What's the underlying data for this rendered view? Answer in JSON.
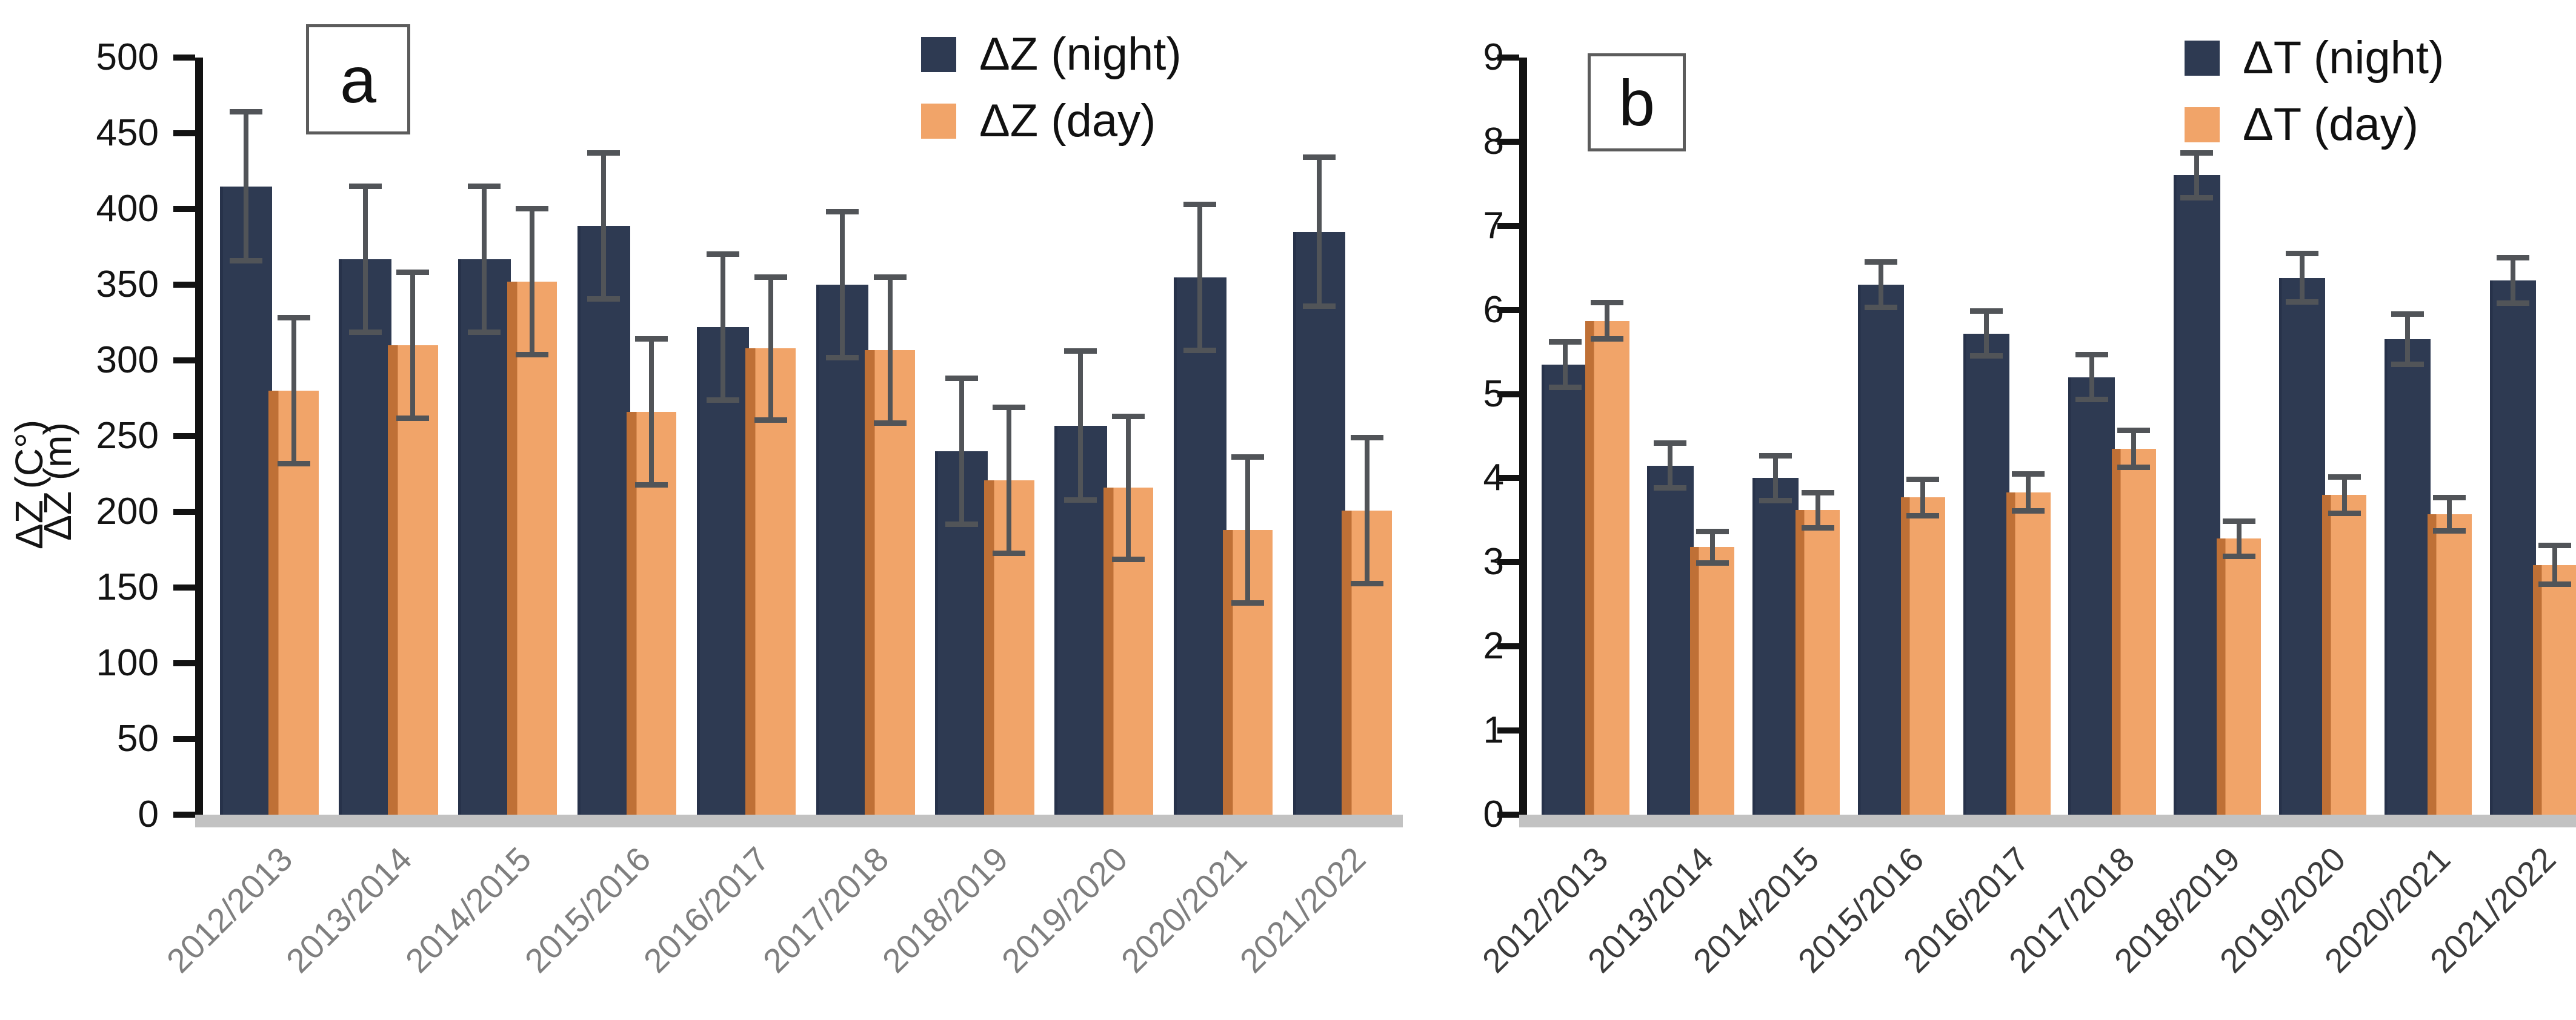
{
  "chart_data": [
    {
      "id": "a",
      "type": "bar",
      "panel_label": "a",
      "ylabel": "ΔZ (m)",
      "ylim": [
        0,
        500
      ],
      "ymax": 500,
      "yticks": [
        0,
        50,
        100,
        150,
        200,
        250,
        300,
        350,
        400,
        450,
        500
      ],
      "grid": "off",
      "legend_position": "top-center",
      "xlabel_color": "#7f7f7f",
      "categories": [
        "2012/2013",
        "2013/2014",
        "2014/2015",
        "2015/2016",
        "2016/2017",
        "2017/2018",
        "2018/2019",
        "2019/2020",
        "2020/2021",
        "2021/2022"
      ],
      "series": [
        {
          "name": "ΔZ (night)",
          "color": "#2e3a52",
          "values": [
            415,
            367,
            367,
            389,
            322,
            350,
            240,
            257,
            355,
            385
          ],
          "errors": [
            51,
            50,
            50,
            50,
            50,
            50,
            50,
            51,
            50,
            51
          ]
        },
        {
          "name": "ΔZ (day)",
          "color": "#f1a469",
          "values": [
            280,
            310,
            352,
            266,
            308,
            307,
            221,
            216,
            188,
            201
          ],
          "errors": [
            50,
            50,
            50,
            50,
            49,
            50,
            50,
            49,
            50,
            50
          ]
        }
      ],
      "legend": [
        {
          "label": "ΔZ (night)",
          "color": "#2e3a52"
        },
        {
          "label": "ΔZ (day)",
          "color": "#f1a469"
        }
      ]
    },
    {
      "id": "b",
      "type": "bar",
      "panel_label": "b",
      "ylabel": "ΔZ (C°)",
      "ylim": [
        0,
        9
      ],
      "ymax": 9,
      "yticks": [
        0,
        1,
        2,
        3,
        4,
        5,
        6,
        7,
        8,
        9
      ],
      "grid": "off",
      "legend_position": "top-center",
      "xlabel_color": "#3c3c3c",
      "categories": [
        "2012/2013",
        "2013/2014",
        "2014/2015",
        "2015/2016",
        "2016/2017",
        "2017/2018",
        "2018/2019",
        "2019/2020",
        "2020/2021",
        "2021/2022"
      ],
      "series": [
        {
          "name": "ΔT (night)",
          "color": "#2e3a52",
          "values": [
            5.35,
            4.15,
            4.0,
            6.3,
            5.72,
            5.2,
            7.6,
            6.38,
            5.65,
            6.35
          ],
          "errors": [
            0.3,
            0.3,
            0.3,
            0.3,
            0.3,
            0.3,
            0.3,
            0.32,
            0.33,
            0.3
          ]
        },
        {
          "name": "ΔT (day)",
          "color": "#f1a469",
          "values": [
            5.87,
            3.18,
            3.62,
            3.77,
            3.83,
            4.35,
            3.28,
            3.8,
            3.57,
            2.97
          ],
          "errors": [
            0.25,
            0.22,
            0.24,
            0.25,
            0.25,
            0.25,
            0.24,
            0.25,
            0.23,
            0.26
          ]
        }
      ],
      "legend": [
        {
          "label": "ΔT (night)",
          "color": "#2e3a52"
        },
        {
          "label": "ΔT (day)",
          "color": "#f1a469"
        }
      ]
    }
  ],
  "colors": {
    "night_bar": "#2e3a52",
    "night_bar_edge": "#27324a",
    "day_bar": "#f1a469",
    "day_bar_edge": "#bf7036",
    "error_bar": "#515458",
    "axis": "#121212",
    "baseline_strip": "#c2c2c2",
    "tick_label": "#141414"
  }
}
